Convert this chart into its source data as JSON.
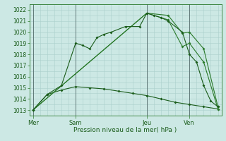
{
  "title": "Pression niveau de la mer( hPa )",
  "background_color": "#cce8e4",
  "grid_color": "#aad0cc",
  "line_color_dark": "#1a5c1a",
  "line_color_med": "#2a7a2a",
  "ylim": [
    1012.5,
    1022.5
  ],
  "yticks": [
    1013,
    1014,
    1015,
    1016,
    1017,
    1018,
    1019,
    1020,
    1021,
    1022
  ],
  "xtick_labels": [
    "Mer",
    "Sam",
    "Jeu",
    "Ven"
  ],
  "xtick_positions": [
    0,
    6,
    16,
    22
  ],
  "total_steps": 26,
  "series1_x": [
    0,
    2,
    4,
    6,
    7,
    8,
    9,
    10,
    11,
    13,
    15,
    16,
    17,
    18,
    19,
    21,
    22,
    23,
    24,
    25,
    26
  ],
  "series1_y": [
    1013.0,
    1014.4,
    1015.2,
    1019.0,
    1018.8,
    1018.5,
    1019.5,
    1019.8,
    1020.0,
    1020.5,
    1020.5,
    1021.7,
    1021.5,
    1021.3,
    1021.0,
    1020.0,
    1018.0,
    1017.3,
    1015.2,
    1013.8,
    1013.3
  ],
  "series2_x": [
    0,
    16,
    19,
    21,
    22,
    24,
    26
  ],
  "series2_y": [
    1013.0,
    1021.7,
    1021.5,
    1019.9,
    1020.0,
    1018.5,
    1013.3
  ],
  "series3_x": [
    0,
    16,
    19,
    21,
    22,
    24,
    26
  ],
  "series3_y": [
    1013.0,
    1021.7,
    1021.1,
    1018.7,
    1019.0,
    1017.3,
    1013.1
  ],
  "series4_x": [
    0,
    2,
    4,
    6,
    8,
    10,
    12,
    14,
    16,
    18,
    20,
    22,
    24,
    26
  ],
  "series4_y": [
    1013.0,
    1014.4,
    1014.8,
    1015.1,
    1015.0,
    1014.9,
    1014.7,
    1014.5,
    1014.3,
    1014.0,
    1013.7,
    1013.5,
    1013.3,
    1013.1
  ],
  "vline_positions": [
    0,
    6,
    16,
    22
  ],
  "vline_color": "#607878"
}
